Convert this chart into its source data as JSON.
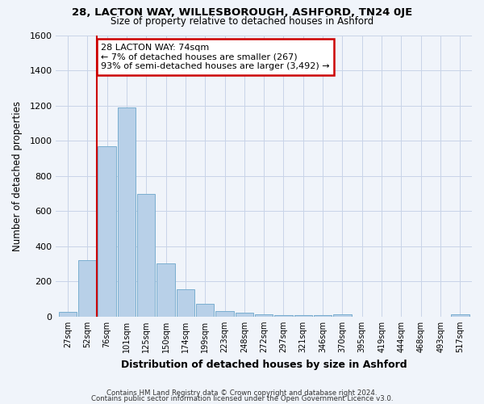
{
  "title": "28, LACTON WAY, WILLESBOROUGH, ASHFORD, TN24 0JE",
  "subtitle": "Size of property relative to detached houses in Ashford",
  "xlabel": "Distribution of detached houses by size in Ashford",
  "ylabel": "Number of detached properties",
  "bar_color": "#b8d0e8",
  "bar_edge_color": "#7aaed0",
  "grid_color": "#c8d4e8",
  "background_color": "#f0f4fa",
  "tick_labels": [
    "27sqm",
    "52sqm",
    "76sqm",
    "101sqm",
    "125sqm",
    "150sqm",
    "174sqm",
    "199sqm",
    "223sqm",
    "248sqm",
    "272sqm",
    "297sqm",
    "321sqm",
    "346sqm",
    "370sqm",
    "395sqm",
    "419sqm",
    "444sqm",
    "468sqm",
    "493sqm",
    "517sqm"
  ],
  "bar_values": [
    25,
    320,
    970,
    1190,
    700,
    305,
    155,
    75,
    30,
    20,
    15,
    10,
    10,
    10,
    15,
    0,
    0,
    0,
    0,
    0,
    15
  ],
  "ylim": [
    0,
    1600
  ],
  "yticks": [
    0,
    200,
    400,
    600,
    800,
    1000,
    1200,
    1400,
    1600
  ],
  "property_line_x": 2,
  "property_line_color": "#cc0000",
  "annotation_line1": "28 LACTON WAY: 74sqm",
  "annotation_line2": "← 7% of detached houses are smaller (267)",
  "annotation_line3": "93% of semi-detached houses are larger (3,492) →",
  "annotation_box_color": "#ffffff",
  "annotation_box_edge_color": "#cc0000",
  "footer_line1": "Contains HM Land Registry data © Crown copyright and database right 2024.",
  "footer_line2": "Contains public sector information licensed under the Open Government Licence v3.0."
}
